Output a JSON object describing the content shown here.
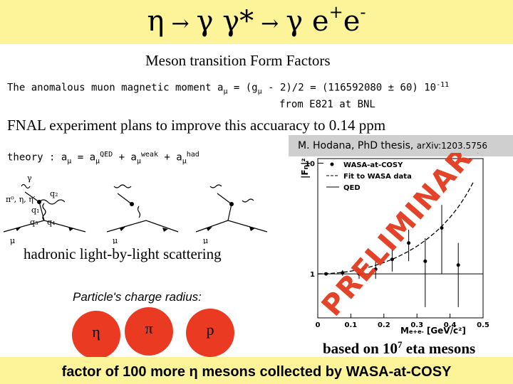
{
  "title": {
    "eta": "η",
    "arrow": "→",
    "gammas": "γ γ*",
    "gamma_e": "γ e",
    "plus": "+",
    "e": "e",
    "minus": "-"
  },
  "subtitle": "Meson transition Form Factors",
  "muon": {
    "prefix": "The anomalous muon magnetic moment a",
    "mu": "μ",
    "mid": " = (g",
    "mu2": "μ",
    "rest": " - 2)/2 = (116592080 ± 60) 10",
    "exp": "-11",
    "line2": "from E821 at BNL"
  },
  "fnal": "FNAL experiment plans to improve this accuaracy to 0.14 ppm",
  "theory": {
    "prefix": "theory : a",
    "mu": "μ",
    "eq": " = a",
    "mu2": "μ",
    "qed": "QED",
    "plus1": " + a",
    "mu3": "μ",
    "weak": "weak",
    "plus2": " + a",
    "mu4": "μ",
    "had": "had"
  },
  "diagram_labels": {
    "gamma": "γ",
    "mesons": "π⁰, η, η′",
    "q1": "q₁",
    "q2": "q₂",
    "q3": "q₃",
    "q4": "q₄",
    "mu": "μ"
  },
  "lbl_label": "hadronic light-by-light scattering",
  "radius_label": "Particle's charge radius:",
  "particles": [
    "η",
    "π",
    "p"
  ],
  "colors": {
    "banner": "#fdf49a",
    "particle": "#ea3a22",
    "watermark": "#e23a1e",
    "fit": "#000000"
  },
  "hodana": {
    "name": "M. Hodana, PhD thesis, ",
    "ref": "arXiv:1203.5756"
  },
  "based": {
    "prefix": "based on 10",
    "exp": "7",
    "suffix": " eta mesons"
  },
  "footer": "factor of 100 more  η mesons collected by WASA-at-COSY",
  "watermark": "PRELIMINARY",
  "chart_data": {
    "type": "scatter",
    "title": "",
    "xlabel": "M",
    "xlabel_sub": "e+e-",
    "xlabel_unit": "[GeV/c²]",
    "ylabel": "|F",
    "ylabel_sub": "η",
    "ylabel_tail": "|²",
    "xlim": [
      0,
      0.5
    ],
    "ylim": [
      0.4,
      11
    ],
    "log_y": true,
    "x_ticks": [
      "0",
      "0.1",
      "0.2",
      "0.3",
      "0.4",
      "0.5"
    ],
    "y_ticks": [
      {
        "value": 10,
        "label": "10"
      },
      {
        "value": 1,
        "label": "1"
      }
    ],
    "legend": [
      "WASA-at-COSY",
      "Fit to WASA data",
      "QED"
    ],
    "legend_position": "top-left",
    "series": [
      {
        "name": "WASA-at-COSY",
        "points": [
          {
            "x": 0.025,
            "y": 1.0,
            "err": 0.02
          },
          {
            "x": 0.075,
            "y": 1.02,
            "err": 0.06
          },
          {
            "x": 0.125,
            "y": 1.0,
            "err": 0.1
          },
          {
            "x": 0.175,
            "y": 1.1,
            "err": 0.2
          },
          {
            "x": 0.225,
            "y": 1.35,
            "err": 0.3
          },
          {
            "x": 0.275,
            "y": 1.9,
            "err": 0.6
          },
          {
            "x": 0.325,
            "y": 1.3,
            "err": 0.8
          },
          {
            "x": 0.375,
            "y": 2.6,
            "err": 1.6
          },
          {
            "x": 0.425,
            "y": 1.2,
            "err": 0.7
          }
        ]
      },
      {
        "name": "Fit to WASA data",
        "lambda": 0.6
      },
      {
        "name": "QED",
        "value": 1
      }
    ]
  }
}
